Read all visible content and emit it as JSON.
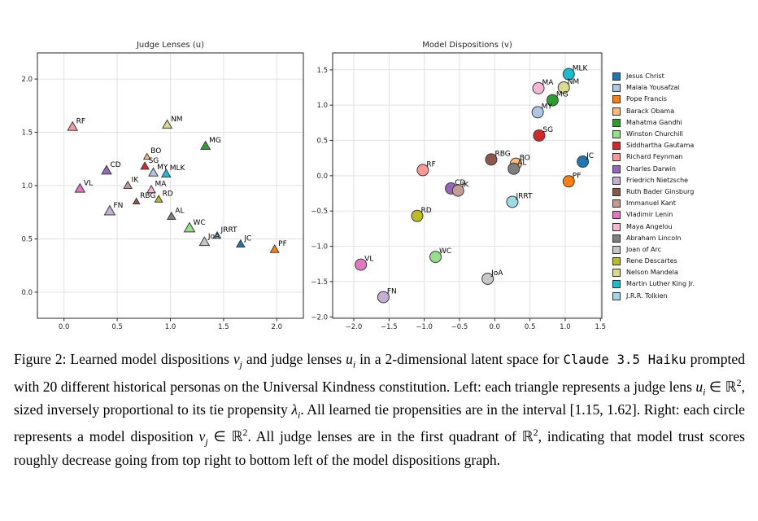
{
  "chart_data": [
    {
      "type": "scatter",
      "title": "Judge Lenses (u)",
      "marker": "triangle",
      "xlim": [
        -0.25,
        2.25
      ],
      "ylim": [
        -0.245,
        2.245
      ],
      "xticks": [
        0.0,
        0.5,
        1.0,
        1.5,
        2.0
      ],
      "yticks": [
        0.0,
        0.5,
        1.0,
        1.5,
        2.0
      ],
      "grid": true,
      "points": [
        {
          "label": "RF",
          "x": 0.08,
          "y": 1.55,
          "color": "#ff9896",
          "s": 6.0
        },
        {
          "label": "VL",
          "x": 0.15,
          "y": 0.97,
          "color": "#e377c2",
          "s": 6.0
        },
        {
          "label": "CD",
          "x": 0.4,
          "y": 1.14,
          "color": "#9467bd",
          "s": 6.0
        },
        {
          "label": "FN",
          "x": 0.43,
          "y": 0.76,
          "color": "#c5b0d5",
          "s": 6.5
        },
        {
          "label": "IK",
          "x": 0.6,
          "y": 1.0,
          "color": "#c49c94",
          "s": 5.0
        },
        {
          "label": "RBG",
          "x": 0.68,
          "y": 0.85,
          "color": "#8c564b",
          "s": 4.0
        },
        {
          "label": "SG",
          "x": 0.76,
          "y": 1.18,
          "color": "#d62728",
          "s": 5.0
        },
        {
          "label": "BO",
          "x": 0.78,
          "y": 1.27,
          "color": "#ffbb78",
          "s": 4.0
        },
        {
          "label": "MA",
          "x": 0.82,
          "y": 0.96,
          "color": "#f7b6d2",
          "s": 5.0
        },
        {
          "label": "MY",
          "x": 0.84,
          "y": 1.12,
          "color": "#aec7e8",
          "s": 5.6
        },
        {
          "label": "RD",
          "x": 0.89,
          "y": 0.87,
          "color": "#bcbd22",
          "s": 4.7
        },
        {
          "label": "MLK",
          "x": 0.96,
          "y": 1.11,
          "color": "#17becf",
          "s": 5.5
        },
        {
          "label": "NM",
          "x": 0.97,
          "y": 1.57,
          "color": "#dbdb8d",
          "s": 5.7
        },
        {
          "label": "AL",
          "x": 1.01,
          "y": 0.71,
          "color": "#7f7f7f",
          "s": 5.0
        },
        {
          "label": "WC",
          "x": 1.18,
          "y": 0.6,
          "color": "#98df8a",
          "s": 6.5
        },
        {
          "label": "MG",
          "x": 1.33,
          "y": 1.37,
          "color": "#2ca02c",
          "s": 5.7
        },
        {
          "label": "JoA",
          "x": 1.32,
          "y": 0.47,
          "color": "#c7c7c7",
          "s": 6.0
        },
        {
          "label": "JRRT",
          "x": 1.44,
          "y": 0.53,
          "color": "#9edae5",
          "s": 4.5
        },
        {
          "label": "JC",
          "x": 1.66,
          "y": 0.45,
          "color": "#1f77b4",
          "s": 5.0
        },
        {
          "label": "PF",
          "x": 1.98,
          "y": 0.4,
          "color": "#ff7f0e",
          "s": 5.3
        }
      ]
    },
    {
      "type": "scatter",
      "title": "Model Dispositions (v)",
      "marker": "circle",
      "xlim": [
        -2.3,
        1.52
      ],
      "ylim": [
        -2.02,
        1.74
      ],
      "xticks": [
        -2.0,
        -1.5,
        -1.0,
        -0.5,
        0.0,
        0.5,
        1.0,
        1.5
      ],
      "yticks": [
        -2.0,
        -1.5,
        -1.0,
        -0.5,
        0.0,
        0.5,
        1.0,
        1.5
      ],
      "grid": true,
      "points": [
        {
          "label": "MLK",
          "x": 1.05,
          "y": 1.44,
          "color": "#17becf",
          "s": 7
        },
        {
          "label": "MA",
          "x": 0.62,
          "y": 1.24,
          "color": "#f7b6d2",
          "s": 7
        },
        {
          "label": "NM",
          "x": 0.98,
          "y": 1.25,
          "color": "#dbdb8d",
          "s": 7
        },
        {
          "label": "MG",
          "x": 0.82,
          "y": 1.07,
          "color": "#2ca02c",
          "s": 7
        },
        {
          "label": "MY",
          "x": 0.61,
          "y": 0.9,
          "color": "#aec7e8",
          "s": 7
        },
        {
          "label": "SG",
          "x": 0.63,
          "y": 0.57,
          "color": "#d62728",
          "s": 7
        },
        {
          "label": "RBG",
          "x": -0.05,
          "y": 0.23,
          "color": "#8c564b",
          "s": 7
        },
        {
          "label": "BO",
          "x": 0.3,
          "y": 0.17,
          "color": "#ffbb78",
          "s": 7
        },
        {
          "label": "AL",
          "x": 0.27,
          "y": 0.1,
          "color": "#7f7f7f",
          "s": 7
        },
        {
          "label": "JC",
          "x": 1.25,
          "y": 0.2,
          "color": "#1f77b4",
          "s": 7
        },
        {
          "label": "RF",
          "x": -1.02,
          "y": 0.08,
          "color": "#ff9896",
          "s": 7
        },
        {
          "label": "PF",
          "x": 1.05,
          "y": -0.08,
          "color": "#ff7f0e",
          "s": 7
        },
        {
          "label": "CD",
          "x": -0.62,
          "y": -0.18,
          "color": "#9467bd",
          "s": 7
        },
        {
          "label": "IK",
          "x": -0.52,
          "y": -0.21,
          "color": "#c49c94",
          "s": 7
        },
        {
          "label": "JRRT",
          "x": 0.25,
          "y": -0.37,
          "color": "#9edae5",
          "s": 7
        },
        {
          "label": "RD",
          "x": -1.1,
          "y": -0.57,
          "color": "#bcbd22",
          "s": 7
        },
        {
          "label": "WC",
          "x": -0.84,
          "y": -1.15,
          "color": "#98df8a",
          "s": 7
        },
        {
          "label": "VL",
          "x": -1.9,
          "y": -1.26,
          "color": "#e377c2",
          "s": 7
        },
        {
          "label": "JoA",
          "x": -0.1,
          "y": -1.46,
          "color": "#c7c7c7",
          "s": 7
        },
        {
          "label": "FN",
          "x": -1.58,
          "y": -1.72,
          "color": "#c5b0d5",
          "s": 7
        }
      ]
    }
  ],
  "legend": {
    "items": [
      {
        "label": "Jesus Christ",
        "color": "#1f77b4"
      },
      {
        "label": "Malala Yousafzai",
        "color": "#aec7e8"
      },
      {
        "label": "Pope Francis",
        "color": "#ff7f0e"
      },
      {
        "label": "Barack Obama",
        "color": "#ffbb78"
      },
      {
        "label": "Mahatma Gandhi",
        "color": "#2ca02c"
      },
      {
        "label": "Winston Churchill",
        "color": "#98df8a"
      },
      {
        "label": "Siddhartha Gautama",
        "color": "#d62728"
      },
      {
        "label": "Richard Feynman",
        "color": "#ff9896"
      },
      {
        "label": "Charles Darwin",
        "color": "#9467bd"
      },
      {
        "label": "Friedrich Nietzsche",
        "color": "#c5b0d5"
      },
      {
        "label": "Ruth Bader Ginsburg",
        "color": "#8c564b"
      },
      {
        "label": "Immanuel Kant",
        "color": "#c49c94"
      },
      {
        "label": "Vladimir Lenin",
        "color": "#e377c2"
      },
      {
        "label": "Maya Angelou",
        "color": "#f7b6d2"
      },
      {
        "label": "Abraham Lincoln",
        "color": "#7f7f7f"
      },
      {
        "label": "Joan of Arc",
        "color": "#c7c7c7"
      },
      {
        "label": "Rene Descartes",
        "color": "#bcbd22"
      },
      {
        "label": "Nelson Mandela",
        "color": "#dbdb8d"
      },
      {
        "label": "Martin Luther King Jr.",
        "color": "#17becf"
      },
      {
        "label": "J.R.R. Tolkien",
        "color": "#9edae5"
      }
    ]
  },
  "caption": {
    "segments": [
      {
        "t": "Figure 2: Learned model dispositions ",
        "s": "n"
      },
      {
        "t": "v",
        "s": "i"
      },
      {
        "t": "j",
        "s": "sub"
      },
      {
        "t": " and judge lenses ",
        "s": "n"
      },
      {
        "t": "u",
        "s": "i"
      },
      {
        "t": "i",
        "s": "sub"
      },
      {
        "t": " in a 2-dimensional latent space for ",
        "s": "n"
      },
      {
        "t": "Claude 3.5 Haiku",
        "s": "m"
      },
      {
        "t": " prompted with 20 different historical personas on the Universal Kindness constitution. Left: each triangle represents a judge lens ",
        "s": "n"
      },
      {
        "t": "u",
        "s": "i"
      },
      {
        "t": "i",
        "s": "sub"
      },
      {
        "t": " ∈ ℝ",
        "s": "n"
      },
      {
        "t": "2",
        "s": "sup"
      },
      {
        "t": ", sized inversely proportional to its tie propensity ",
        "s": "n"
      },
      {
        "t": "λ",
        "s": "i"
      },
      {
        "t": "i",
        "s": "sub"
      },
      {
        "t": ". All learned tie propensities are in the interval [1.15, 1.62]. Right: each circle represents a model disposition ",
        "s": "n"
      },
      {
        "t": "v",
        "s": "i"
      },
      {
        "t": "j",
        "s": "sub"
      },
      {
        "t": " ∈ ℝ",
        "s": "n"
      },
      {
        "t": "2",
        "s": "sup"
      },
      {
        "t": ". All judge lenses are in the first quadrant of ℝ",
        "s": "n"
      },
      {
        "t": "2",
        "s": "sup"
      },
      {
        "t": ", indicating that model trust scores roughly decrease going from top right to bottom left of the model dispositions graph.",
        "s": "n"
      }
    ]
  },
  "style": {
    "grid_color": "#e2e2e2",
    "frame_color": "#262626",
    "tick_label_color": "#262626",
    "marker_edge_color": "#3b3b3b",
    "point_label_color": "#000000"
  }
}
